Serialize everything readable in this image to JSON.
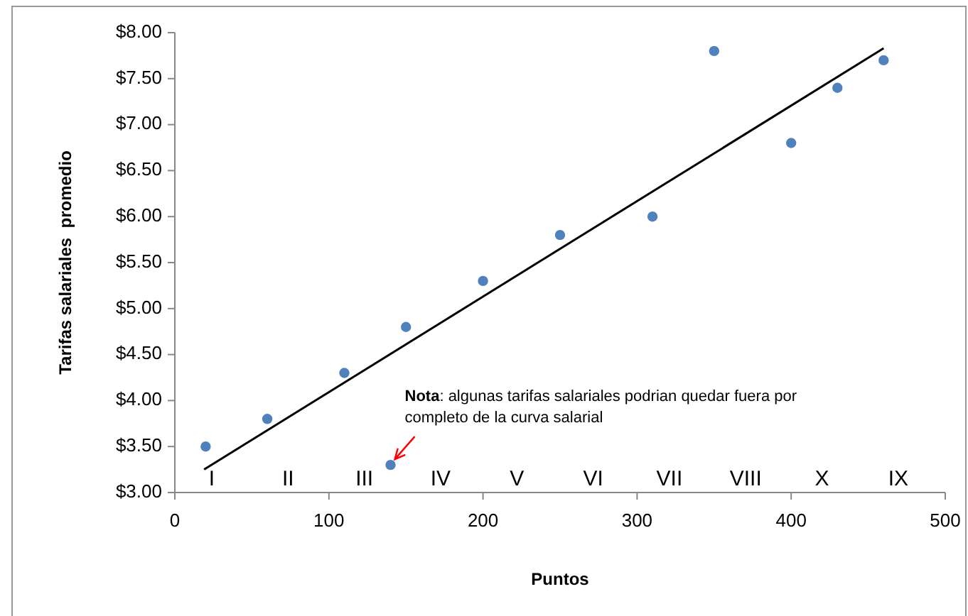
{
  "chart_data": {
    "type": "scatter",
    "xlabel": "Puntos",
    "ylabel": "Tarifas salariales  promedio",
    "xlim": [
      0,
      500
    ],
    "ylim": [
      3,
      8
    ],
    "xticks": [
      0,
      100,
      200,
      300,
      400,
      500
    ],
    "yticks": [
      {
        "value": 3,
        "label": "$3.00"
      },
      {
        "value": 3.5,
        "label": "$3.50"
      },
      {
        "value": 4,
        "label": "$4.00"
      },
      {
        "value": 4.5,
        "label": "$4.50"
      },
      {
        "value": 5,
        "label": "$5.00"
      },
      {
        "value": 5.5,
        "label": "$5.50"
      },
      {
        "value": 6,
        "label": "$6.00"
      },
      {
        "value": 6.5,
        "label": "$6.50"
      },
      {
        "value": 7,
        "label": "$7.00"
      },
      {
        "value": 7.5,
        "label": "$7.50"
      },
      {
        "value": 8,
        "label": "$8.00"
      }
    ],
    "grid": false,
    "series": [
      {
        "color": "#4f81bd",
        "marker": "circle",
        "x": [
          20,
          60,
          110,
          150,
          140,
          200,
          250,
          310,
          350,
          400,
          430,
          460
        ],
        "values": [
          3.5,
          3.8,
          4.3,
          4.8,
          3.3,
          5.3,
          5.8,
          6.0,
          7.8,
          6.8,
          7.4,
          7.7
        ]
      },
      {
        "type": "line",
        "color": "#000000",
        "marker": "none",
        "line_style": "solid",
        "x": [
          19,
          460
        ],
        "values": [
          3.25,
          7.83
        ]
      }
    ],
    "annotations": [
      {
        "text": "Nota: algunas tarifas salariales podrian quedar fuera por completo de la curva salarial",
        "x": 140,
        "y": 3.3
      },
      "I",
      "II",
      "III",
      "IV",
      "V",
      "VI",
      "VII",
      "VIII",
      "X",
      "IX"
    ]
  }
}
